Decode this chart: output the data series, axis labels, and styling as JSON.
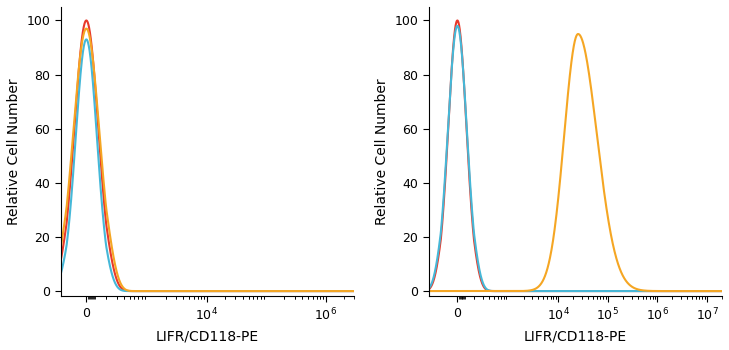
{
  "panel1": {
    "xlabel": "LIFR/CD118-PE",
    "ylabel": "Relative Cell Number",
    "ylim": [
      -2,
      105
    ],
    "yticks": [
      0,
      20,
      40,
      60,
      80,
      100
    ],
    "linthresh": 200,
    "linscale": 0.3,
    "xlim_low": -250,
    "xlim_high": 3000000,
    "xticks": [
      0,
      10000,
      1000000
    ],
    "xticklabels": [
      "0",
      "10$^4$",
      "10$^6$"
    ],
    "curves": [
      {
        "color": "#e8392a",
        "peak": 0,
        "sigma": 120,
        "height": 100
      },
      {
        "color": "#45b8d8",
        "peak": 0,
        "sigma": 108,
        "height": 93
      },
      {
        "color": "#f5a623",
        "peak": 0,
        "sigma": 132,
        "height": 97
      }
    ]
  },
  "panel2": {
    "xlabel": "LIFR/CD118-PE",
    "ylabel": "Relative Cell Number",
    "ylim": [
      -2,
      105
    ],
    "yticks": [
      0,
      20,
      40,
      60,
      80,
      100
    ],
    "linthresh": 200,
    "linscale": 0.3,
    "xlim_low": -350,
    "xlim_high": 20000000,
    "xticks": [
      0,
      10000,
      100000,
      1000000,
      10000000
    ],
    "xticklabels": [
      "0",
      "10$^4$",
      "10$^5$",
      "10$^6$",
      "10$^7$"
    ],
    "curves_near0": [
      {
        "color": "#e8392a",
        "peak": 0,
        "sigma": 110,
        "height": 100
      },
      {
        "color": "#45b8d8",
        "peak": 0,
        "sigma": 115,
        "height": 98
      }
    ],
    "curve_orange": {
      "color": "#f5a623",
      "log_peak": 4.4,
      "sigma_l": 0.28,
      "sigma_r": 0.38,
      "height": 95,
      "x_start": 1500
    }
  },
  "bg_color": "#ffffff",
  "line_width": 1.5,
  "tick_label_fontsize": 9,
  "axis_label_fontsize": 10
}
